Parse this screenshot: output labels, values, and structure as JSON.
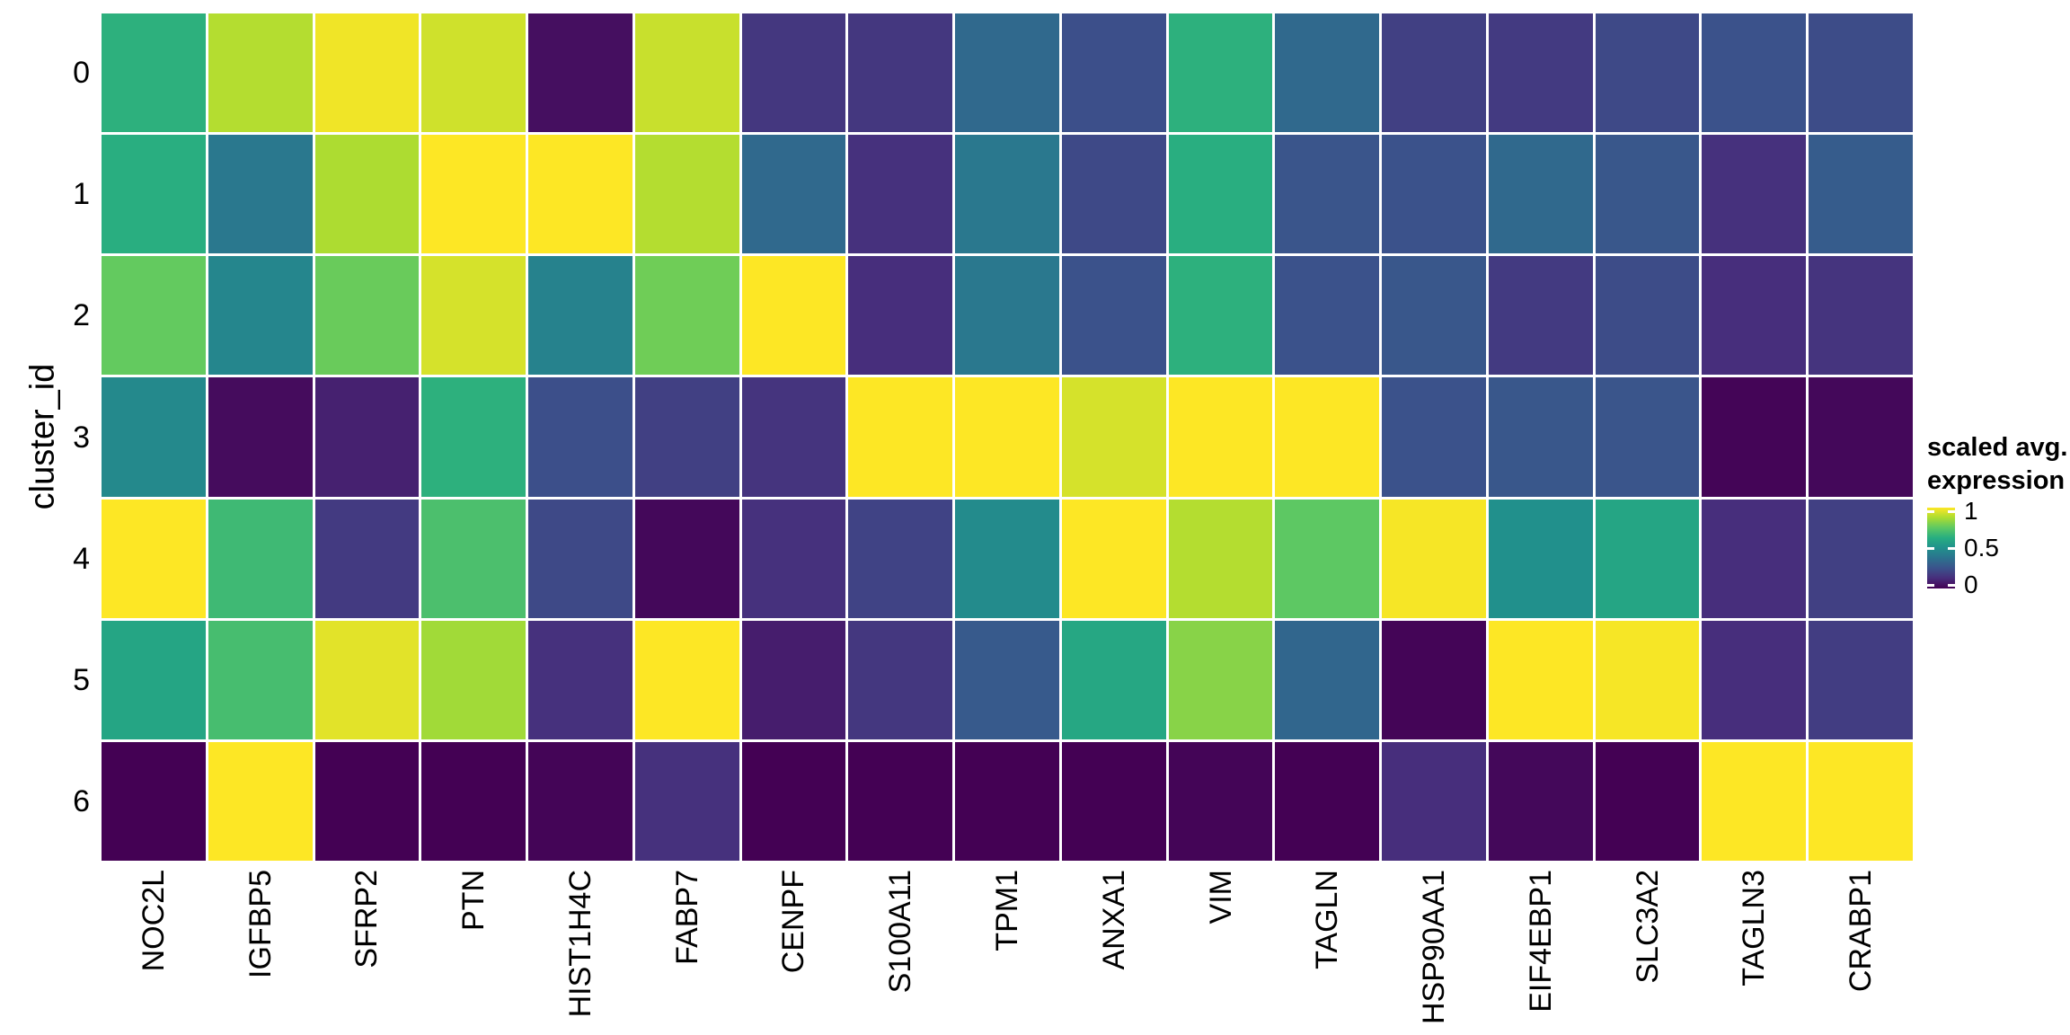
{
  "figure": {
    "background": "#ffffff",
    "y_axis": {
      "title": "cluster_id",
      "ticks": [
        "0",
        "1",
        "2",
        "3",
        "4",
        "5",
        "6"
      ]
    },
    "x_axis": {
      "ticks": [
        "NOC2L",
        "IGFBP5",
        "SFRP2",
        "PTN",
        "HIST1H4C",
        "FABP7",
        "CENPF",
        "S100A11",
        "TPM1",
        "ANXA1",
        "VIM",
        "TAGLN",
        "HSP90AA1",
        "EIF4EBP1",
        "SLC3A2",
        "TAGLN3",
        "CRABP1"
      ]
    },
    "legend": {
      "title_line1": "scaled avg.",
      "title_line2": "expression",
      "ticks": [
        "1",
        "0.5",
        "0"
      ]
    },
    "palette": {
      "name": "viridis",
      "stops": [
        "#440154",
        "#472D7B",
        "#3B528B",
        "#2C728E",
        "#21908C",
        "#27AD81",
        "#5DC863",
        "#AADC32",
        "#FDE725"
      ]
    }
  },
  "chart_data": {
    "type": "heatmap",
    "title": "",
    "xlabel": "",
    "ylabel": "cluster_id",
    "colormap": "viridis",
    "x_categories": [
      "NOC2L",
      "IGFBP5",
      "SFRP2",
      "PTN",
      "HIST1H4C",
      "FABP7",
      "CENPF",
      "S100A11",
      "TPM1",
      "ANXA1",
      "VIM",
      "TAGLN",
      "HSP90AA1",
      "EIF4EBP1",
      "SLC3A2",
      "TAGLN3",
      "CRABP1"
    ],
    "y_categories": [
      "0",
      "1",
      "2",
      "3",
      "4",
      "5",
      "6"
    ],
    "colorbar": {
      "label": "scaled avg. expression",
      "range": [
        0,
        1
      ],
      "tick_values": [
        1,
        0.5,
        0
      ]
    },
    "values": [
      [
        0.64,
        0.89,
        0.98,
        0.93,
        0.04,
        0.92,
        0.16,
        0.16,
        0.34,
        0.24,
        0.64,
        0.34,
        0.19,
        0.17,
        0.22,
        0.25,
        0.23
      ],
      [
        0.63,
        0.4,
        0.88,
        1.0,
        1.0,
        0.89,
        0.34,
        0.14,
        0.4,
        0.22,
        0.63,
        0.26,
        0.25,
        0.34,
        0.27,
        0.14,
        0.29
      ],
      [
        0.76,
        0.46,
        0.77,
        0.94,
        0.44,
        0.78,
        1.0,
        0.13,
        0.4,
        0.25,
        0.64,
        0.25,
        0.27,
        0.17,
        0.23,
        0.13,
        0.15
      ],
      [
        0.47,
        0.03,
        0.09,
        0.64,
        0.24,
        0.19,
        0.15,
        1.0,
        1.0,
        0.94,
        1.0,
        1.0,
        0.25,
        0.27,
        0.26,
        0.01,
        0.02
      ],
      [
        1.0,
        0.68,
        0.17,
        0.71,
        0.22,
        0.02,
        0.14,
        0.2,
        0.48,
        1.0,
        0.89,
        0.75,
        0.99,
        0.5,
        0.59,
        0.13,
        0.19
      ],
      [
        0.59,
        0.7,
        0.96,
        0.86,
        0.14,
        1.0,
        0.08,
        0.16,
        0.28,
        0.6,
        0.82,
        0.33,
        0.01,
        1.0,
        0.99,
        0.13,
        0.18
      ],
      [
        0.0,
        1.0,
        0.0,
        0.0,
        0.01,
        0.14,
        0.0,
        0.0,
        0.0,
        0.0,
        0.01,
        0.0,
        0.13,
        0.02,
        0.0,
        1.0,
        1.0
      ]
    ]
  }
}
